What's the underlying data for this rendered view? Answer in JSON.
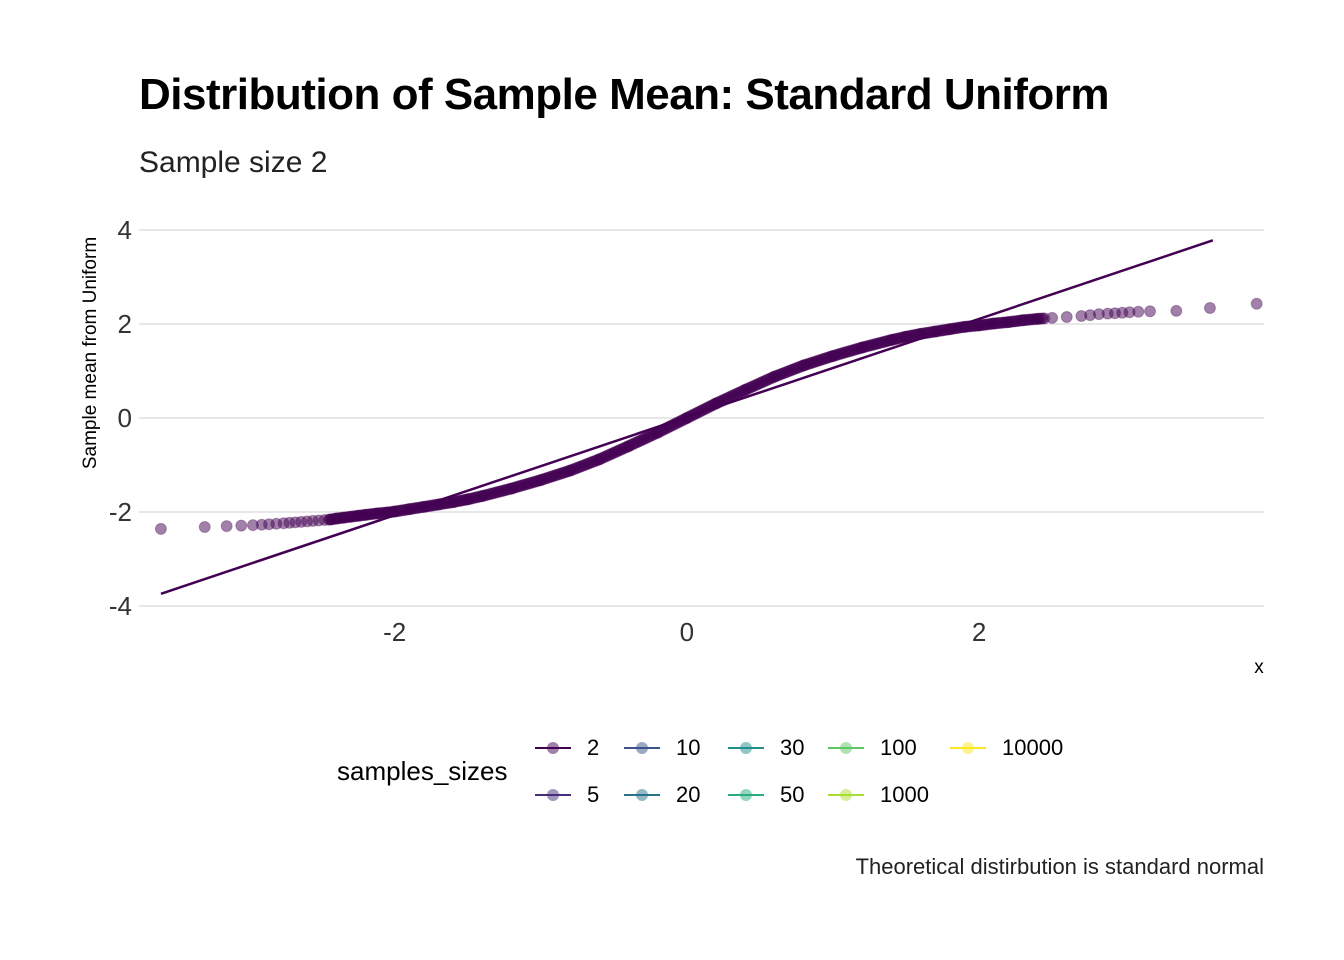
{
  "title": "Distribution of Sample Mean: Standard Uniform",
  "subtitle": "Sample size 2",
  "caption": "Theoretical distirbution is standard normal",
  "chart_data": {
    "type": "scatter",
    "subtype": "qq-plot",
    "title": "Distribution of Sample Mean: Standard Uniform",
    "subtitle": "Sample size 2",
    "xlabel": "x",
    "ylabel": "Sample mean from Uniform",
    "xlim": [
      -3.75,
      3.95
    ],
    "ylim": [
      -4.0,
      4.0
    ],
    "x_ticks": [
      -2,
      0,
      2
    ],
    "y_ticks": [
      4,
      2,
      0,
      -2,
      -4
    ],
    "grid": "horizontal major",
    "reference_line": {
      "x": [
        -3.6,
        3.6
      ],
      "y": [
        -3.74,
        3.78
      ],
      "color": "#440154"
    },
    "point_color": "#440154",
    "point_opacity": 0.5,
    "series": [
      {
        "name": "2",
        "points": [
          [
            -3.6,
            -2.36
          ],
          [
            -3.3,
            -2.32
          ],
          [
            -3.15,
            -2.3
          ],
          [
            -3.05,
            -2.29
          ],
          [
            -2.97,
            -2.28
          ],
          [
            -2.91,
            -2.27
          ],
          [
            -2.86,
            -2.26
          ],
          [
            -2.81,
            -2.25
          ],
          [
            -2.76,
            -2.24
          ],
          [
            -2.72,
            -2.23
          ],
          [
            -2.68,
            -2.22
          ],
          [
            -2.64,
            -2.21
          ],
          [
            -2.6,
            -2.2
          ],
          [
            -2.56,
            -2.19
          ],
          [
            -2.52,
            -2.18
          ],
          [
            -2.48,
            -2.17
          ],
          [
            -2.44,
            -2.16
          ],
          [
            -2.4,
            -2.14
          ],
          [
            -2.35,
            -2.12
          ],
          [
            -2.3,
            -2.1
          ],
          [
            -2.25,
            -2.08
          ],
          [
            -2.2,
            -2.06
          ],
          [
            -2.12,
            -2.03
          ],
          [
            -2.05,
            -2.01
          ],
          [
            -2.0,
            -1.99
          ],
          [
            -1.9,
            -1.94
          ],
          [
            -1.8,
            -1.89
          ],
          [
            -1.7,
            -1.84
          ],
          [
            -1.6,
            -1.79
          ],
          [
            -1.5,
            -1.73
          ],
          [
            -1.4,
            -1.66
          ],
          [
            -1.2,
            -1.5
          ],
          [
            -1.0,
            -1.32
          ],
          [
            -0.8,
            -1.12
          ],
          [
            -0.6,
            -0.88
          ],
          [
            -0.4,
            -0.6
          ],
          [
            -0.2,
            -0.31
          ],
          [
            0.0,
            0.0
          ],
          [
            0.2,
            0.31
          ],
          [
            0.4,
            0.6
          ],
          [
            0.6,
            0.88
          ],
          [
            0.8,
            1.12
          ],
          [
            1.0,
            1.32
          ],
          [
            1.2,
            1.5
          ],
          [
            1.4,
            1.66
          ],
          [
            1.5,
            1.73
          ],
          [
            1.6,
            1.79
          ],
          [
            1.7,
            1.84
          ],
          [
            1.8,
            1.89
          ],
          [
            1.9,
            1.94
          ],
          [
            2.0,
            1.97
          ],
          [
            2.1,
            2.01
          ],
          [
            2.2,
            2.04
          ],
          [
            2.3,
            2.08
          ],
          [
            2.4,
            2.11
          ],
          [
            2.5,
            2.13
          ],
          [
            2.6,
            2.15
          ],
          [
            2.7,
            2.17
          ],
          [
            2.76,
            2.19
          ],
          [
            2.82,
            2.21
          ],
          [
            2.88,
            2.22
          ],
          [
            2.93,
            2.23
          ],
          [
            2.98,
            2.24
          ],
          [
            3.03,
            2.25
          ],
          [
            3.09,
            2.26
          ],
          [
            3.17,
            2.27
          ],
          [
            3.35,
            2.28
          ],
          [
            3.58,
            2.34
          ],
          [
            3.9,
            2.43
          ]
        ]
      }
    ],
    "legend": {
      "title": "samples_sizes",
      "position": "bottom",
      "entries": [
        {
          "label": "2",
          "color": "#440154"
        },
        {
          "label": "5",
          "color": "#472D7B"
        },
        {
          "label": "10",
          "color": "#3B528B"
        },
        {
          "label": "20",
          "color": "#2C728E"
        },
        {
          "label": "30",
          "color": "#21908C"
        },
        {
          "label": "50",
          "color": "#27AD81"
        },
        {
          "label": "100",
          "color": "#5DC863"
        },
        {
          "label": "1000",
          "color": "#AADC32"
        },
        {
          "label": "10000",
          "color": "#FDE725"
        }
      ]
    }
  }
}
